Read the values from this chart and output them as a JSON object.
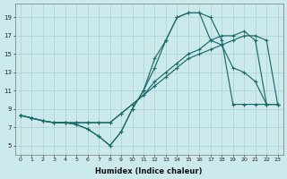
{
  "xlabel": "Humidex (Indice chaleur)",
  "ylabel": "",
  "bg_color": "#cce9ec",
  "grid_color": "#aad0d4",
  "line_color": "#1a6b6b",
  "xlim": [
    -0.5,
    23.5
  ],
  "ylim": [
    4.0,
    20.5
  ],
  "xticks": [
    0,
    1,
    2,
    3,
    4,
    5,
    6,
    7,
    8,
    9,
    10,
    11,
    12,
    13,
    14,
    15,
    16,
    17,
    18,
    19,
    20,
    21,
    22,
    23
  ],
  "yticks": [
    5,
    7,
    9,
    11,
    13,
    15,
    17,
    19
  ],
  "line1_x": [
    0,
    1,
    2,
    3,
    4,
    5,
    6,
    7,
    8,
    9,
    10,
    11,
    12,
    13,
    14,
    15,
    16,
    17,
    18,
    19,
    20,
    21,
    22,
    23
  ],
  "line1_y": [
    8.3,
    8.0,
    7.7,
    7.5,
    7.5,
    7.5,
    7.5,
    7.5,
    7.5,
    8.5,
    9.5,
    10.5,
    11.5,
    12.5,
    13.5,
    14.5,
    15.0,
    15.5,
    16.0,
    16.5,
    17.0,
    17.0,
    16.5,
    9.5
  ],
  "line2_x": [
    0,
    1,
    2,
    3,
    4,
    5,
    6,
    7,
    8,
    9,
    10,
    11,
    12,
    13,
    14,
    15,
    16,
    17,
    18,
    19,
    20,
    21,
    22,
    23
  ],
  "line2_y": [
    8.3,
    8.0,
    7.7,
    7.5,
    7.5,
    7.3,
    6.8,
    6.0,
    5.0,
    6.5,
    9.0,
    11.0,
    13.5,
    16.5,
    19.0,
    19.5,
    19.5,
    19.0,
    16.5,
    9.5,
    9.5,
    9.5,
    9.5,
    9.5
  ],
  "line3_x": [
    0,
    1,
    2,
    3,
    4,
    5,
    6,
    7,
    8,
    9,
    10,
    11,
    12,
    13,
    14,
    15,
    16,
    17,
    18,
    19,
    20,
    21,
    22,
    23
  ],
  "line3_y": [
    8.3,
    8.0,
    7.7,
    7.5,
    7.5,
    7.3,
    6.8,
    6.0,
    5.0,
    6.5,
    9.0,
    11.0,
    14.5,
    16.5,
    19.0,
    19.5,
    19.5,
    16.5,
    16.0,
    13.5,
    13.0,
    12.0,
    9.5,
    9.5
  ],
  "line4_x": [
    0,
    1,
    2,
    3,
    4,
    5,
    6,
    7,
    8,
    9,
    10,
    11,
    12,
    13,
    14,
    15,
    16,
    17,
    18,
    19,
    20,
    21,
    22,
    23
  ],
  "line4_y": [
    8.3,
    8.0,
    7.7,
    7.5,
    7.5,
    7.5,
    7.5,
    7.5,
    7.5,
    8.5,
    9.5,
    10.5,
    12.0,
    13.0,
    14.0,
    15.0,
    15.5,
    16.5,
    17.0,
    17.0,
    17.5,
    16.5,
    9.5,
    9.5
  ]
}
